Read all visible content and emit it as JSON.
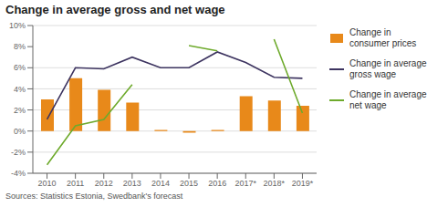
{
  "chart_data": {
    "type": "bar",
    "title": "Change in average gross and net wage",
    "categories": [
      "2010",
      "2011",
      "2012",
      "2013",
      "2014",
      "2015",
      "2016",
      "2017*",
      "2018*",
      "2019*"
    ],
    "series": [
      {
        "name": "Change in\nconsumer prices",
        "type": "bar",
        "color": "#E8891A",
        "values": [
          3.0,
          5.0,
          3.9,
          2.7,
          0.1,
          -0.15,
          0.1,
          3.3,
          2.9,
          2.4
        ]
      },
      {
        "name": "Change in average\ngross wage",
        "type": "line",
        "color": "#3D3460",
        "values": [
          1.1,
          6.0,
          5.9,
          7.0,
          6.0,
          6.0,
          7.5,
          6.5,
          5.1,
          5.0
        ]
      },
      {
        "name": "Change in average\nnet wage",
        "type": "line",
        "color": "#6EAA2C",
        "values": [
          -3.2,
          0.5,
          1.1,
          4.4,
          null,
          8.1,
          7.6,
          null,
          8.7,
          1.7
        ]
      }
    ],
    "ylim": [
      -4,
      10
    ],
    "yticks": [
      {
        "value": -4,
        "label": "-4%"
      },
      {
        "value": -2,
        "label": "-2%"
      },
      {
        "value": 0,
        "label": "0%"
      },
      {
        "value": 2,
        "label": "2%"
      },
      {
        "value": 4,
        "label": "4%"
      },
      {
        "value": 6,
        "label": "6%"
      },
      {
        "value": 8,
        "label": "8%"
      },
      {
        "value": 10,
        "label": "10%"
      }
    ],
    "grid": true,
    "legend": "right",
    "annotations": [
      "Sources: Statistics Estonia, Swedbank's forecast"
    ]
  }
}
